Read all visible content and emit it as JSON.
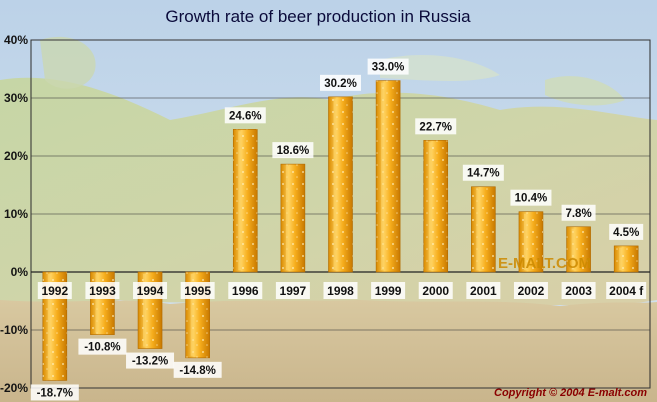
{
  "chart_data": {
    "type": "bar",
    "title": "Growth rate of beer production in Russia",
    "categories": [
      "1992",
      "1993",
      "1994",
      "1995",
      "1996",
      "1997",
      "1998",
      "1999",
      "2000",
      "2001",
      "2002",
      "2003",
      "2004 f"
    ],
    "values": [
      -18.7,
      -10.8,
      -13.2,
      -14.8,
      24.6,
      18.6,
      30.2,
      33.0,
      22.7,
      14.7,
      10.4,
      7.8,
      4.5
    ],
    "value_labels": [
      "-18.7%",
      "-10.8%",
      "-13.2%",
      "-14.8%",
      "24.6%",
      "18.6%",
      "30.2%",
      "33.0%",
      "22.7%",
      "14.7%",
      "10.4%",
      "7.8%",
      "4.5%"
    ],
    "y_ticks": [
      -20,
      -10,
      0,
      10,
      20,
      30,
      40
    ],
    "y_tick_labels": [
      "-20%",
      "-10%",
      "0%",
      "10%",
      "20%",
      "30%",
      "40%"
    ],
    "ylim": [
      -20,
      40
    ],
    "xlabel": "",
    "ylabel": "",
    "grid": true,
    "background": "map of Russia",
    "bar_color": "#f0a20c",
    "bar_highlight_color": "#ffd870"
  },
  "watermark": "E-MALT.COM",
  "copyright": "Copyright © 2004 E-malt.com"
}
